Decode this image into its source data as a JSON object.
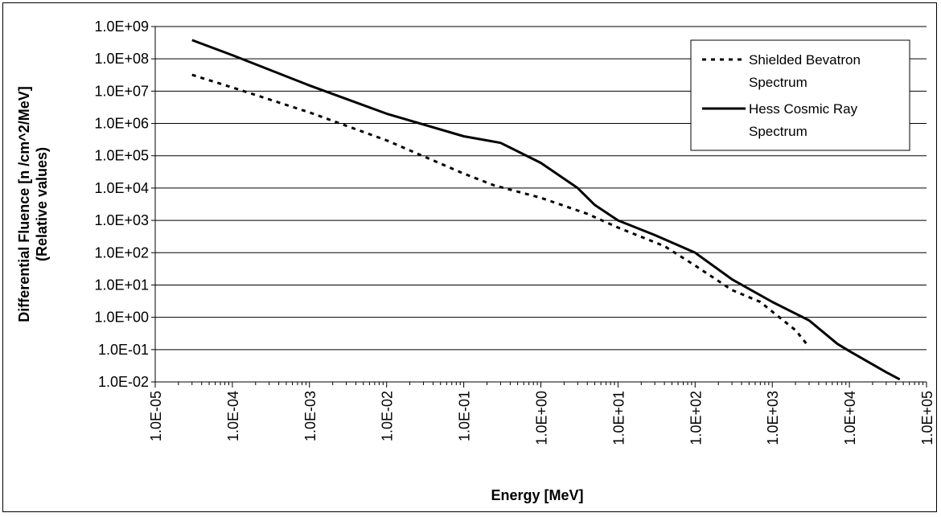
{
  "chart_data": {
    "type": "line",
    "xlabel": "Energy [MeV]",
    "ylabel_line1": "Differential Fluence [n /cm^2/MeV]",
    "ylabel_line2": "(Relative values)",
    "x_scale": "log",
    "y_scale": "log",
    "xlim": [
      1e-05,
      100000.0
    ],
    "ylim": [
      0.01,
      1000000000.0
    ],
    "x_tick_labels": [
      "1.0E-05",
      "1.0E-04",
      "1.0E-03",
      "1.0E-02",
      "1.0E-01",
      "1.0E+00",
      "1.0E+01",
      "1.0E+02",
      "1.0E+03",
      "1.0E+04",
      "1.0E+05"
    ],
    "y_tick_labels": [
      "1.0E-02",
      "1.0E-01",
      "1.0E+00",
      "1.0E+01",
      "1.0E+02",
      "1.0E+03",
      "1.0E+04",
      "1.0E+05",
      "1.0E+06",
      "1.0E+07",
      "1.0E+08",
      "1.0E+09"
    ],
    "grid": "horizontal major gridlines",
    "legend_position": "top-right",
    "series": [
      {
        "name": "Shielded Bevatron Spectrum",
        "style": "dotted",
        "x": [
          3e-05,
          0.0001,
          0.001,
          0.01,
          0.1,
          0.25,
          1.0,
          4.0,
          10.0,
          40.0,
          100.0,
          300.0,
          700.0,
          1000.0,
          2000.0,
          3000.0
        ],
        "y": [
          32000000.0,
          13000000.0,
          2200000.0,
          300000.0,
          28000.0,
          12000.0,
          5000.0,
          1600.0,
          600.0,
          160.0,
          40.0,
          7,
          3,
          1.5,
          0.4,
          0.12
        ]
      },
      {
        "name": "Hess Cosmic Ray Spectrum",
        "style": "solid",
        "x": [
          3e-05,
          0.0001,
          0.001,
          0.01,
          0.1,
          0.2,
          0.3,
          1.0,
          3.0,
          5.0,
          10.0,
          30.0,
          100.0,
          300.0,
          1000.0,
          3000.0,
          7000.0,
          10000.0,
          30000.0,
          45000.0
        ],
        "y": [
          380000000.0,
          130000000.0,
          15000000.0,
          2000000.0,
          400000.0,
          300000.0,
          250000.0,
          60000.0,
          10000.0,
          3000.0,
          1000.0,
          350.0,
          100.0,
          15.0,
          3,
          0.8,
          0.15,
          0.09,
          0.02,
          0.012
        ]
      }
    ]
  }
}
